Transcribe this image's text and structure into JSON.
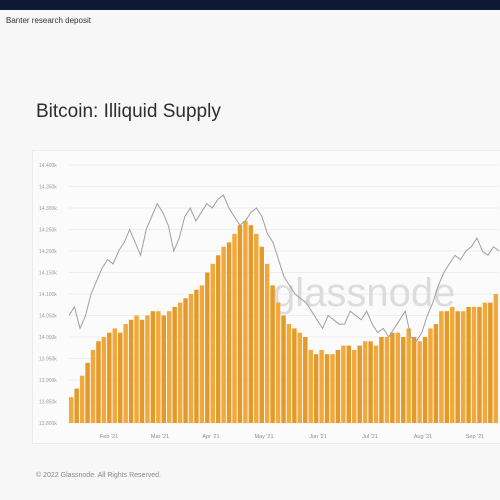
{
  "caption": "Banter research deposit",
  "title": "Bitcoin: Illiquid Supply",
  "footer": "© 2022 Glassnode. All Rights Reserved.",
  "watermark": "glassnode",
  "colors": {
    "bar": "#f2a93b",
    "bar_dark": "#e39a2b",
    "line": "#9aa1a8",
    "watermark": "#d9d9d9"
  },
  "chart_data": {
    "type": "bar",
    "title": "Bitcoin: Illiquid Supply",
    "y_ticks": [
      "13.800k",
      "13.850k",
      "13.900k",
      "13.950k",
      "14.000k",
      "14.050k",
      "14.100k",
      "14.150k",
      "14.200k",
      "14.250k",
      "14.300k",
      "14.350k",
      "14.400k"
    ],
    "ylim": [
      13.8,
      14.4
    ],
    "x_tick_labels": [
      "Feb '21",
      "Mar '21",
      "Apr '21",
      "May '21",
      "Jun '21",
      "Jul '21",
      "Aug '21",
      "Sep '21"
    ],
    "series": [
      {
        "type": "bar",
        "values": [
          13.86,
          13.88,
          13.91,
          13.94,
          13.97,
          13.99,
          14.0,
          14.01,
          14.02,
          14.01,
          14.03,
          14.04,
          14.05,
          14.04,
          14.05,
          14.06,
          14.06,
          14.05,
          14.06,
          14.07,
          14.08,
          14.09,
          14.1,
          14.11,
          14.12,
          14.15,
          14.17,
          14.19,
          14.21,
          14.22,
          14.24,
          14.26,
          14.27,
          14.26,
          14.24,
          14.21,
          14.17,
          14.12,
          14.08,
          14.05,
          14.03,
          14.02,
          14.01,
          14.0,
          13.97,
          13.96,
          13.97,
          13.96,
          13.96,
          13.97,
          13.98,
          13.98,
          13.97,
          13.98,
          13.99,
          13.99,
          13.98,
          14.0,
          14.0,
          14.01,
          14.01,
          14.0,
          14.02,
          14.0,
          13.99,
          14.0,
          14.02,
          14.03,
          14.06,
          14.06,
          14.07,
          14.06,
          14.06,
          14.07,
          14.07,
          14.07,
          14.08,
          14.08,
          14.1
        ]
      },
      {
        "type": "line",
        "values": [
          14.05,
          14.07,
          14.02,
          14.05,
          14.1,
          14.13,
          14.16,
          14.18,
          14.17,
          14.2,
          14.22,
          14.25,
          14.22,
          14.19,
          14.25,
          14.28,
          14.31,
          14.29,
          14.26,
          14.2,
          14.23,
          14.28,
          14.3,
          14.27,
          14.29,
          14.31,
          14.3,
          14.32,
          14.33,
          14.3,
          14.28,
          14.26,
          14.27,
          14.29,
          14.3,
          14.28,
          14.24,
          14.22,
          14.18,
          14.14,
          14.12,
          14.1,
          14.09,
          14.08,
          14.06,
          14.04,
          14.02,
          14.05,
          14.04,
          14.03,
          14.03,
          14.06,
          14.05,
          14.04,
          14.06,
          14.03,
          14.01,
          14.02,
          14.0,
          14.02,
          14.04,
          14.06,
          14.0,
          13.99,
          14.01,
          14.05,
          14.08,
          14.12,
          14.15,
          14.17,
          14.19,
          14.18,
          14.2,
          14.21,
          14.23,
          14.2,
          14.19,
          14.21,
          14.2
        ]
      }
    ]
  }
}
